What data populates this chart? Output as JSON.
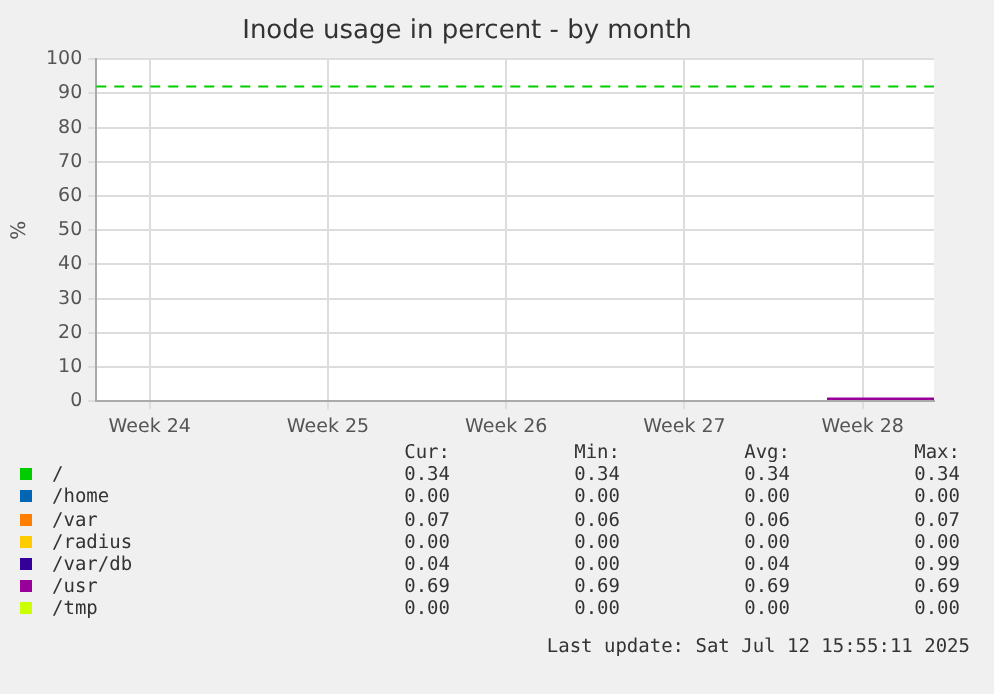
{
  "chart_data": {
    "type": "line",
    "title": "Inode usage in percent - by month",
    "ylabel": "%",
    "categories": [
      null,
      null,
      null,
      "Week 24",
      null,
      null,
      null,
      null,
      null,
      null,
      null,
      null,
      null,
      "Week 25",
      null,
      null,
      null,
      null,
      null,
      null,
      null,
      null,
      null,
      "Week 26",
      null,
      null,
      null,
      null,
      null,
      null,
      null,
      null,
      null,
      "Week 27",
      null,
      null,
      null,
      null,
      null,
      null,
      null,
      null,
      null,
      "Week 28",
      null,
      null,
      null,
      null
    ],
    "ylim": [
      0,
      100
    ],
    "yticks": [
      0,
      10,
      20,
      30,
      40,
      50,
      60,
      70,
      80,
      90,
      100
    ],
    "grid": true,
    "legend": "bottom",
    "line_style": "solid",
    "marker": "none",
    "series": [
      {
        "name": "/",
        "color": "#00cc00",
        "values": [
          null,
          null,
          null,
          null,
          null,
          null,
          null,
          null,
          null,
          null,
          null,
          null,
          null,
          null,
          null,
          null,
          null,
          null,
          null,
          null,
          null,
          null,
          null,
          null,
          null,
          null,
          null,
          null,
          null,
          null,
          null,
          null,
          null,
          null,
          null,
          null,
          null,
          null,
          null,
          null,
          null,
          null,
          null,
          null,
          null,
          null,
          null,
          null
        ]
      },
      {
        "name": "/home",
        "color": "#0066b3",
        "values": [
          null,
          null,
          null,
          null,
          null,
          null,
          null,
          null,
          null,
          null,
          null,
          null,
          null,
          null,
          null,
          null,
          null,
          null,
          null,
          null,
          null,
          null,
          null,
          null,
          null,
          null,
          null,
          null,
          null,
          null,
          null,
          null,
          null,
          null,
          null,
          null,
          null,
          null,
          null,
          null,
          null,
          null,
          null,
          null,
          null,
          null,
          null,
          null
        ]
      },
      {
        "name": "/var",
        "color": "#ff8000",
        "values": [
          null,
          null,
          null,
          null,
          null,
          null,
          null,
          null,
          null,
          null,
          null,
          null,
          null,
          null,
          null,
          null,
          null,
          null,
          null,
          null,
          null,
          null,
          null,
          null,
          null,
          null,
          null,
          null,
          null,
          null,
          null,
          null,
          null,
          null,
          null,
          null,
          null,
          null,
          null,
          null,
          null,
          null,
          null,
          null,
          null,
          null,
          null,
          null
        ]
      },
      {
        "name": "/radius",
        "color": "#ffcc00",
        "values": [
          null,
          null,
          null,
          null,
          null,
          null,
          null,
          null,
          null,
          null,
          null,
          null,
          null,
          null,
          null,
          null,
          null,
          null,
          null,
          null,
          null,
          null,
          null,
          null,
          null,
          null,
          null,
          null,
          null,
          null,
          null,
          null,
          null,
          null,
          null,
          null,
          null,
          null,
          null,
          null,
          null,
          null,
          null,
          null,
          null,
          null,
          null,
          null
        ]
      },
      {
        "name": "/var/db",
        "color": "#330099",
        "values": [
          null,
          null,
          null,
          null,
          null,
          null,
          null,
          null,
          null,
          null,
          null,
          null,
          null,
          null,
          null,
          null,
          null,
          null,
          null,
          null,
          null,
          null,
          null,
          null,
          null,
          null,
          null,
          null,
          null,
          null,
          null,
          null,
          null,
          null,
          null,
          null,
          null,
          null,
          null,
          null,
          null,
          null,
          null,
          null,
          null,
          null,
          null,
          null
        ]
      },
      {
        "name": "/usr",
        "color": "#990099",
        "values": [
          null,
          null,
          null,
          null,
          null,
          null,
          null,
          null,
          null,
          null,
          null,
          null,
          null,
          null,
          null,
          null,
          null,
          null,
          null,
          null,
          null,
          null,
          null,
          null,
          null,
          null,
          null,
          null,
          null,
          null,
          null,
          null,
          null,
          null,
          null,
          null,
          null,
          null,
          null,
          null,
          null,
          0.7,
          0.7,
          0.7,
          0.7,
          0.7,
          0.7,
          0.7
        ]
      },
      {
        "name": "/tmp",
        "color": "#ccff00",
        "values": [
          null,
          null,
          null,
          null,
          null,
          null,
          null,
          null,
          null,
          null,
          null,
          null,
          null,
          null,
          null,
          null,
          null,
          null,
          null,
          null,
          null,
          null,
          null,
          null,
          null,
          null,
          null,
          null,
          null,
          null,
          null,
          null,
          null,
          null,
          null,
          null,
          null,
          null,
          null,
          null,
          null,
          null,
          null,
          null,
          null,
          null,
          null,
          null
        ]
      }
    ],
    "ref_lines": [
      {
        "axis": "y",
        "value": 92,
        "color": "#00cc00",
        "line_style": "dashed"
      }
    ],
    "annotations": [
      "Cur:",
      "Min:",
      "Avg:",
      "Max:",
      "0.34",
      "0.34",
      "0.34",
      "0.34",
      "0.00",
      "0.00",
      "0.00",
      "0.00",
      "0.07",
      "0.06",
      "0.06",
      "0.07",
      "0.00",
      "0.00",
      "0.00",
      "0.00",
      "0.04",
      "0.00",
      "0.04",
      "0.99",
      "0.69",
      "0.69",
      "0.69",
      "0.69",
      "0.00",
      "0.00",
      "0.00",
      "0.00",
      "Last update: Sat Jul 12 15:55:11 2025"
    ]
  }
}
